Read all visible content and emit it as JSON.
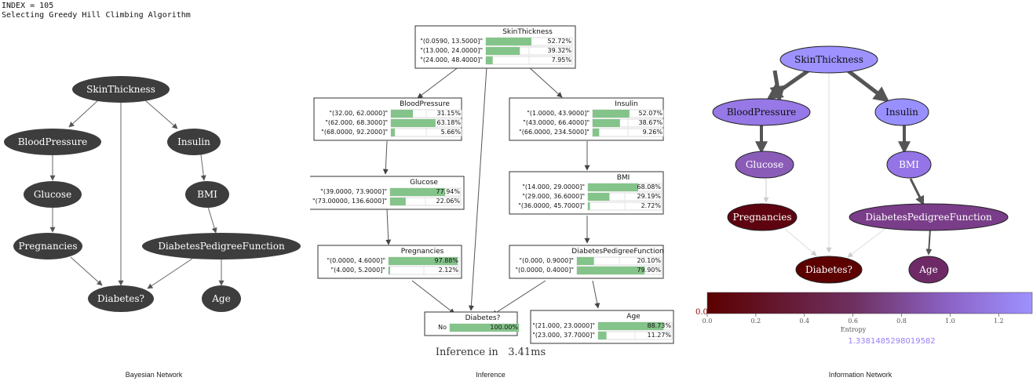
{
  "console": {
    "line1": "INDEX = 105",
    "line2": "Selecting Greedy Hill Climbing Algorithm"
  },
  "captions": {
    "bayesian": "Bayesian Network",
    "inference": "Inference",
    "information": "Information Network"
  },
  "bayesian_network": {
    "nodes": [
      "SkinThickness",
      "BloodPressure",
      "Insulin",
      "Glucose",
      "BMI",
      "Pregnancies",
      "DiabetesPedigreeFunction",
      "Diabetes?",
      "Age"
    ]
  },
  "inference": {
    "time_label": "Inference in",
    "time_value": "3.41ms",
    "tables": [
      {
        "name": "SkinThickness",
        "rows": [
          [
            "\"(0.0590, 13.5000]\"",
            "52.72%",
            52.72
          ],
          [
            "\"(13.000, 24.0000]\"",
            "39.32%",
            39.32
          ],
          [
            "\"(24.000, 48.4000]\"",
            "7.95%",
            7.95
          ]
        ]
      },
      {
        "name": "BloodPressure",
        "rows": [
          [
            "\"(32.00, 62.0000]\"",
            "31.15%",
            31.15
          ],
          [
            "\"(62.000, 68.3000]\"",
            "63.18%",
            63.18
          ],
          [
            "\"(68.0000, 92.2000]\"",
            "5.66%",
            5.66
          ]
        ]
      },
      {
        "name": "Insulin",
        "rows": [
          [
            "\"(1.0000, 43.9000]\"",
            "52.07%",
            52.07
          ],
          [
            "\"(43.0000, 66.4000]\"",
            "38.67%",
            38.67
          ],
          [
            "\"(66.0000, 234.5000]\"",
            "9.26%",
            9.26
          ]
        ]
      },
      {
        "name": "Glucose",
        "rows": [
          [
            "\"(39.0000, 73.9000]\"",
            "77.94%",
            77.94
          ],
          [
            "\"(73.00000, 136.6000]\"",
            "22.06%",
            22.06
          ]
        ]
      },
      {
        "name": "BMI",
        "rows": [
          [
            "\"(14.000, 29.0000]\"",
            "68.08%",
            68.08
          ],
          [
            "\"(29.000, 36.6000]\"",
            "29.19%",
            29.19
          ],
          [
            "\"(36.0000, 45.7000]\"",
            "2.72%",
            2.72
          ]
        ]
      },
      {
        "name": "Pregnancies",
        "rows": [
          [
            "\"(0.0000, 4.6000]\"",
            "97.88%",
            97.88
          ],
          [
            "\"(4.000, 5.2000]\"",
            "2.12%",
            2.12
          ]
        ]
      },
      {
        "name": "DiabetesPedigreeFunction",
        "rows": [
          [
            "\"(0.000, 0.9000]\"",
            "20.10%",
            20.1
          ],
          [
            "\"(0.0000, 0.4000]\"",
            "79.90%",
            79.9
          ]
        ]
      },
      {
        "name": "Diabetes?",
        "rows": [
          [
            "No",
            "100.00%",
            100
          ]
        ]
      },
      {
        "name": "Age",
        "rows": [
          [
            "\"(21.000, 23.0000]\"",
            "88.73%",
            88.73
          ],
          [
            "\"(23.000, 37.7000]\"",
            "11.27%",
            11.27
          ]
        ]
      }
    ]
  },
  "information_network": {
    "colorbar_min_label": "0.0",
    "ticks": [
      "0.0",
      "0.2",
      "0.4",
      "0.6",
      "0.8",
      "1.0",
      "1.2"
    ],
    "colorbar_label": "Entropy",
    "max_entropy": "1.3381485298019582",
    "colors": {
      "low": "#5c0000",
      "mid": "#7a3d8a",
      "high": "#9b8dff"
    }
  }
}
